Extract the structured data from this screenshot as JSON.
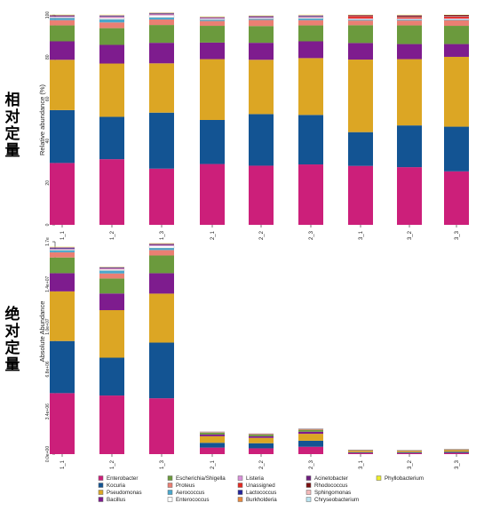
{
  "labels": {
    "top_side": "相对定量",
    "bottom_side": "绝对定量"
  },
  "chart_data": [
    {
      "type": "bar",
      "stacked": true,
      "ylabel": "Relative abundance (%)",
      "ylim": [
        0,
        100
      ],
      "yticks": [
        "0",
        "20",
        "40",
        "60",
        "80",
        "100"
      ],
      "categories": [
        "1_1",
        "1_2",
        "1_3",
        "2_1",
        "2_2",
        "2_3",
        "3_1",
        "3_2",
        "3_3"
      ],
      "series": [
        {
          "name": "Enterobacter",
          "values": [
            29.5,
            31.3,
            26.8,
            29,
            28.2,
            28.8,
            28.1,
            27.5,
            25.5
          ]
        },
        {
          "name": "Kocuria",
          "values": [
            25.2,
            20.2,
            26.7,
            21,
            24.6,
            23.6,
            16.1,
            19.9,
            21.3
          ]
        },
        {
          "name": "Pseudomonas",
          "values": [
            24,
            25.4,
            23.5,
            29,
            25.9,
            27.1,
            34.6,
            31.6,
            33.3
          ]
        },
        {
          "name": "Bacillus",
          "values": [
            8.8,
            8.9,
            9.8,
            7.9,
            8.1,
            8,
            7.9,
            7.2,
            6.1
          ]
        },
        {
          "name": "Escherichia/Shigella",
          "values": [
            7.6,
            8,
            8.5,
            8,
            8,
            7.6,
            8.5,
            8.9,
            8.7
          ]
        },
        {
          "name": "Proteus",
          "values": [
            2.5,
            2.7,
            2.6,
            2.3,
            2.9,
            2.5,
            2.2,
            2.3,
            2.6
          ]
        },
        {
          "name": "Aerococcus",
          "values": [
            1,
            1.5,
            1,
            0.6,
            0.5,
            0.8,
            0.4,
            0.4,
            0.3
          ]
        },
        {
          "name": "Enterococcus",
          "values": [
            0.4,
            0.7,
            1,
            0.4,
            0.4,
            0.4,
            0.4,
            0.4,
            0.4
          ]
        },
        {
          "name": "Listeria",
          "values": [
            0.3,
            0.4,
            0.4,
            0.3,
            0.3,
            0.3,
            0.2,
            0.2,
            0.2
          ]
        },
        {
          "name": "Unassigned",
          "values": [
            0.1,
            0.1,
            0.1,
            0.1,
            0.1,
            0.1,
            1,
            0.5,
            0.8
          ]
        },
        {
          "name": "Lactococcus",
          "values": [
            0.3,
            0.3,
            0.3,
            0.2,
            0.3,
            0.3,
            0.1,
            0.1,
            0.1
          ]
        },
        {
          "name": "Burkholderia",
          "values": [
            0.1,
            0.1,
            0.1,
            0.1,
            0.1,
            0.1,
            0.2,
            0.2,
            0.2
          ]
        },
        {
          "name": "Acinetobacter",
          "values": [
            0.1,
            0.1,
            0.1,
            0.1,
            0.1,
            0.1,
            0.1,
            0.1,
            0.1
          ]
        },
        {
          "name": "Rhodococcus",
          "values": [
            0.1,
            0.1,
            0.1,
            0.1,
            0.1,
            0.1,
            0.2,
            0.5,
            0.4
          ]
        },
        {
          "name": "Sphingomonas",
          "values": [
            0.1,
            0.1,
            0.1,
            0.1,
            0.1,
            0.1,
            0.1,
            0.1,
            0.1
          ]
        },
        {
          "name": "Chryseobacterium",
          "values": [
            0.1,
            0.1,
            0.1,
            0.1,
            0.1,
            0.1,
            0.1,
            0.1,
            0.1
          ]
        },
        {
          "name": "Phyllobacterium",
          "values": [
            0.1,
            0.1,
            0.1,
            0.1,
            0.1,
            0.1,
            0.1,
            0.1,
            0.1
          ]
        }
      ]
    },
    {
      "type": "bar",
      "stacked": true,
      "ylabel": "Absolute Abundance",
      "ylim": [
        0,
        17000000
      ],
      "yticks": [
        "0.0e+00",
        "3.4e+06",
        "6.8e+06",
        "1.0e+07",
        "1.4e+07",
        "1.7e"
      ],
      "categories": [
        "1_1",
        "1_2",
        "1_3",
        "2_1",
        "2_2",
        "2_3",
        "3_1",
        "3_2",
        "3_3"
      ],
      "totals": [
        16600000,
        15000000,
        16900000,
        1800000,
        1650000,
        2050000,
        350000,
        320000,
        400000
      ]
    }
  ],
  "legend": {
    "placement": "bottom",
    "items": [
      {
        "name": "Enterobacter",
        "color": "#cc1f7a"
      },
      {
        "name": "Kocuria",
        "color": "#135493"
      },
      {
        "name": "Pseudomonas",
        "color": "#dca624"
      },
      {
        "name": "Bacillus",
        "color": "#7e1c8e"
      },
      {
        "name": "Escherichia/Shigella",
        "color": "#6b9a3d"
      },
      {
        "name": "Proteus",
        "color": "#ea7f73"
      },
      {
        "name": "Aerococcus",
        "color": "#4aa7cc"
      },
      {
        "name": "Enterococcus",
        "color": "#ffffff"
      },
      {
        "name": "Listeria",
        "color": "#d88fd9"
      },
      {
        "name": "Unassigned",
        "color": "#e32a22"
      },
      {
        "name": "Lactococcus",
        "color": "#23239a"
      },
      {
        "name": "Burkholderia",
        "color": "#e8893e"
      },
      {
        "name": "Acinetobacter",
        "color": "#6d1d7d"
      },
      {
        "name": "Rhodococcus",
        "color": "#7a1010"
      },
      {
        "name": "Sphingomonas",
        "color": "#f3b8b8"
      },
      {
        "name": "Chryseobacterium",
        "color": "#b9e3f0"
      },
      {
        "name": "Phyllobacterium",
        "color": "#eded2a"
      }
    ]
  }
}
